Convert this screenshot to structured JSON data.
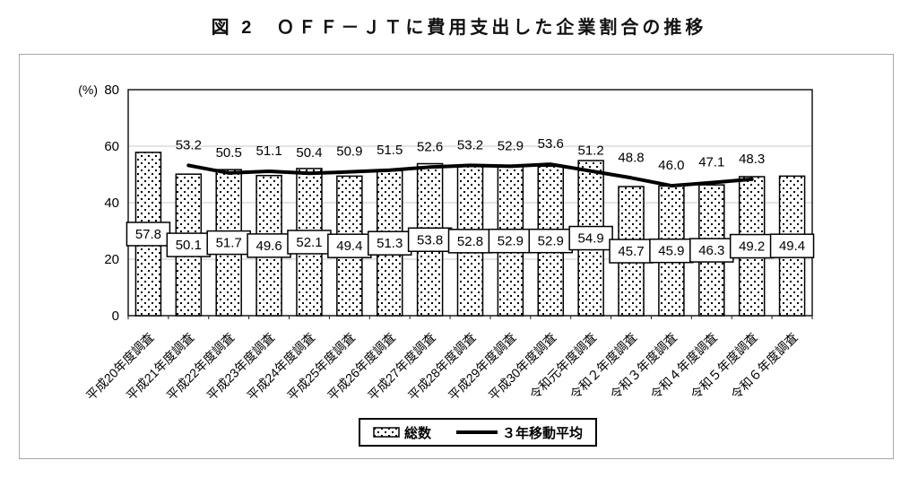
{
  "chart_data": {
    "type": "bar",
    "title": "図 2　ＯＦＦ－ＪＴに費用支出した企業割合の推移",
    "categories": [
      "平成20年度調査",
      "平成21年度調査",
      "平成22年度調査",
      "平成23年度調査",
      "平成24年度調査",
      "平成25年度調査",
      "平成26年度調査",
      "平成27年度調査",
      "平成28年度調査",
      "平成29年度調査",
      "平成30年度調査",
      "令和元年度調査",
      "令和２年度調査",
      "令和３年度調査",
      "令和４年度調査",
      "令和５年度調査",
      "令和６年度調査"
    ],
    "series": [
      {
        "name": "総数",
        "type": "bar",
        "values": [
          57.8,
          50.1,
          51.7,
          49.6,
          52.1,
          49.4,
          51.3,
          53.8,
          52.8,
          52.9,
          52.9,
          54.9,
          45.7,
          45.9,
          46.3,
          49.2,
          49.4
        ]
      },
      {
        "name": "３年移動平均",
        "type": "line",
        "values": [
          null,
          53.2,
          50.5,
          51.1,
          50.4,
          50.9,
          51.5,
          52.6,
          53.2,
          52.9,
          53.6,
          51.2,
          48.8,
          46.0,
          47.1,
          48.3,
          null
        ]
      }
    ],
    "ylabel": "(%)",
    "ylim": [
      0,
      80
    ],
    "yticks": [
      0,
      20,
      40,
      60,
      80
    ],
    "grid": true,
    "legend_position": "bottom"
  },
  "colors": {
    "bar_fill": "#ffffff",
    "bar_border": "#000000",
    "line": "#000000",
    "grid": "#c8c8c8",
    "frame": "#1a1a1a",
    "panel_border": "#a8a8a8",
    "text": "#000000"
  }
}
